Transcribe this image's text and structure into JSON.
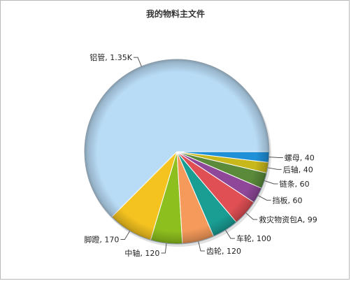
{
  "chart_data": {
    "type": "pie",
    "title": "我的物料主文件",
    "slices": [
      {
        "label": "铝管",
        "value_label": "1.35K",
        "value": 1350,
        "color": "#b9dcf6"
      },
      {
        "label": "脚蹬",
        "value_label": "170",
        "value": 170,
        "color": "#f5c320"
      },
      {
        "label": "中轴",
        "value_label": "120",
        "value": 120,
        "color": "#8dbf1e"
      },
      {
        "label": "齿轮",
        "value_label": "120",
        "value": 120,
        "color": "#f59a5a"
      },
      {
        "label": "车轮",
        "value_label": "100",
        "value": 100,
        "color": "#1a9e94"
      },
      {
        "label": "救灾物资包A",
        "value_label": "99",
        "value": 99,
        "color": "#e04f54"
      },
      {
        "label": "挡板",
        "value_label": "60",
        "value": 60,
        "color": "#8f4799"
      },
      {
        "label": "链条",
        "value_label": "60",
        "value": 60,
        "color": "#5a8a3a"
      },
      {
        "label": "后轴",
        "value_label": "40",
        "value": 40,
        "color": "#c8b81c"
      },
      {
        "label": "螺母",
        "value_label": "40",
        "value": 40,
        "color": "#1f8fd8"
      }
    ]
  }
}
